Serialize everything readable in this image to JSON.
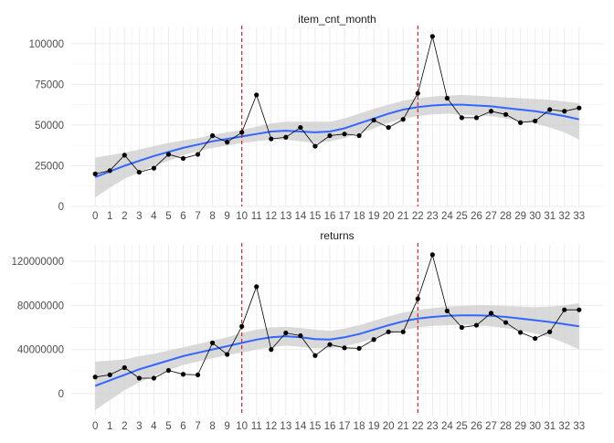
{
  "chart_data": [
    {
      "type": "line",
      "title": "item_cnt_month",
      "xlabel": "",
      "ylabel": "",
      "x": [
        0,
        1,
        2,
        3,
        4,
        5,
        6,
        7,
        8,
        9,
        10,
        11,
        12,
        13,
        14,
        15,
        16,
        17,
        18,
        19,
        20,
        21,
        22,
        23,
        24,
        25,
        26,
        27,
        28,
        29,
        30,
        31,
        32,
        33
      ],
      "xlim": [
        0,
        33
      ],
      "ylim": [
        0,
        110000
      ],
      "yticks": [
        0,
        25000,
        50000,
        75000,
        100000
      ],
      "series": [
        {
          "values": [
            20000,
            22000,
            31500,
            21000,
            23500,
            32000,
            29500,
            32000,
            43500,
            39500,
            45500,
            68500,
            41500,
            42500,
            48500,
            37000,
            43500,
            44500,
            43500,
            53000,
            48500,
            53500,
            69500,
            104500,
            66500,
            54500,
            54500,
            58500,
            56500,
            51500,
            52500,
            59500,
            58500,
            60500
          ],
          "color": "#000000"
        }
      ],
      "smooth": {
        "values": [
          18000,
          21500,
          25000,
          28000,
          31000,
          33500,
          36000,
          38000,
          40000,
          41500,
          43000,
          44500,
          46000,
          46500,
          46000,
          45500,
          46000,
          48000,
          51000,
          54000,
          57000,
          59500,
          61000,
          62000,
          62500,
          62500,
          62000,
          61500,
          60500,
          59500,
          58500,
          57000,
          55500,
          53500
        ],
        "upper": [
          30000,
          31500,
          33000,
          35000,
          37000,
          39000,
          40500,
          42000,
          44000,
          45500,
          47000,
          49000,
          51000,
          52000,
          52000,
          52000,
          52000,
          54000,
          57000,
          60000,
          62500,
          65000,
          66500,
          67500,
          68000,
          68500,
          68000,
          67500,
          67000,
          66500,
          66000,
          65500,
          64500,
          63500
        ],
        "lower": [
          5500,
          11500,
          17000,
          21000,
          25000,
          28000,
          31500,
          34000,
          36000,
          37500,
          39000,
          40000,
          41000,
          41000,
          40000,
          39000,
          40000,
          42000,
          45000,
          48000,
          51500,
          54000,
          55500,
          56500,
          57000,
          56500,
          56000,
          55500,
          54000,
          52500,
          51000,
          48500,
          45500,
          41000
        ],
        "color": "#3366ff",
        "band_color": "#cccccc"
      },
      "vlines": [
        10,
        22
      ],
      "vline_color": "#cc0000",
      "grid": true
    },
    {
      "type": "line",
      "title": "returns",
      "xlabel": "",
      "ylabel": "",
      "x": [
        0,
        1,
        2,
        3,
        4,
        5,
        6,
        7,
        8,
        9,
        10,
        11,
        12,
        13,
        14,
        15,
        16,
        17,
        18,
        19,
        20,
        21,
        22,
        23,
        24,
        25,
        26,
        27,
        28,
        29,
        30,
        31,
        32,
        33
      ],
      "xlim": [
        0,
        33
      ],
      "ylim": [
        -20000000,
        135000000
      ],
      "yticks": [
        0,
        40000000,
        80000000,
        120000000
      ],
      "series": [
        {
          "values": [
            15000000,
            17000000,
            23500000,
            14000000,
            14000000,
            21000000,
            17500000,
            17000000,
            46000000,
            35500000,
            61000000,
            97000000,
            40000000,
            55000000,
            52500000,
            34500000,
            44500000,
            41500000,
            41000000,
            49000000,
            56000000,
            56000000,
            86000000,
            126000000,
            75000000,
            60000000,
            62000000,
            73000000,
            64500000,
            55500000,
            50000000,
            56000000,
            76000000,
            76000000
          ],
          "color": "#000000"
        }
      ],
      "smooth": {
        "values": [
          7000000,
          12000000,
          17000000,
          22000000,
          26000000,
          30000000,
          34000000,
          37000000,
          40000000,
          43000000,
          46000000,
          49000000,
          51000000,
          52000000,
          51000000,
          49500000,
          49000000,
          51000000,
          54000000,
          58000000,
          62000000,
          65500000,
          68000000,
          69500000,
          70500000,
          71000000,
          71000000,
          70500000,
          69500000,
          68000000,
          66500000,
          65000000,
          63000000,
          61000000
        ],
        "upper": [
          29000000,
          30000000,
          31000000,
          34000000,
          36000000,
          39000000,
          42000000,
          45000000,
          48000000,
          51000000,
          55000000,
          58000000,
          60000000,
          60500000,
          59500000,
          58000000,
          57000000,
          59000000,
          62000000,
          66000000,
          70000000,
          73500000,
          76000000,
          77500000,
          79000000,
          79500000,
          80000000,
          80000000,
          79500000,
          79000000,
          78500000,
          79000000,
          80000000,
          82000000
        ],
        "lower": [
          -15000000,
          -6000000,
          3000000,
          10000000,
          16000000,
          21000000,
          26000000,
          29000000,
          32000000,
          35000000,
          37000000,
          40000000,
          42000000,
          43500000,
          42500000,
          41000000,
          41000000,
          43000000,
          46000000,
          50000000,
          54000000,
          57500000,
          60000000,
          61500000,
          62000000,
          62500000,
          62000000,
          61000000,
          59500000,
          57000000,
          54500000,
          51000000,
          46000000,
          40000000
        ],
        "color": "#3366ff",
        "band_color": "#cccccc"
      },
      "vlines": [
        10,
        22
      ],
      "vline_color": "#cc0000",
      "grid": true
    }
  ]
}
